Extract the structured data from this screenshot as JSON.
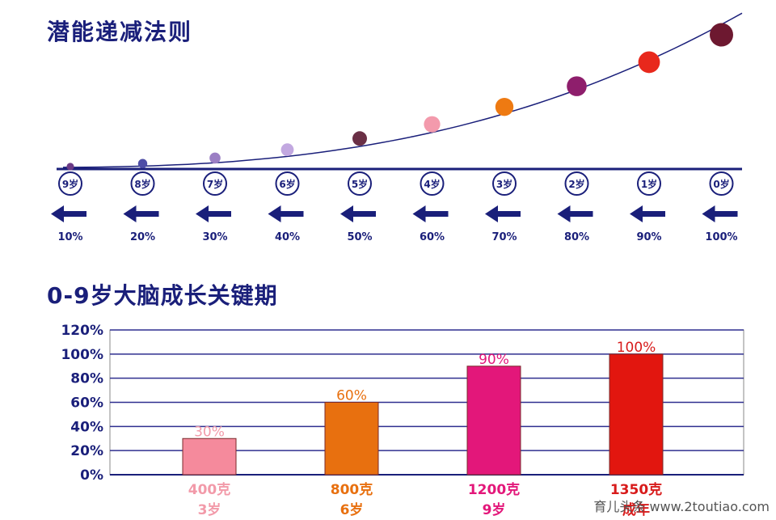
{
  "potential": {
    "title": "潜能递减法则",
    "chart_data": {
      "type": "scatter",
      "ages": [
        "9岁",
        "8岁",
        "7岁",
        "6岁",
        "5岁",
        "4岁",
        "3岁",
        "2岁",
        "1岁",
        "0岁"
      ],
      "percents": [
        "10%",
        "20%",
        "30%",
        "40%",
        "50%",
        "60%",
        "70%",
        "80%",
        "90%",
        "100%"
      ],
      "values": [
        10,
        20,
        30,
        40,
        50,
        60,
        70,
        80,
        90,
        100
      ],
      "dot_colors": [
        "#6b3a86",
        "#4d4da6",
        "#9b7fc4",
        "#c2a8e0",
        "#6a2f45",
        "#f39aac",
        "#ee7a12",
        "#8e1e6c",
        "#e8281c",
        "#6d1830"
      ],
      "axis_color": "#1a1f7a"
    }
  },
  "brain": {
    "title": "0-9岁大脑成长关键期",
    "chart_data": {
      "type": "bar",
      "ylim": [
        0,
        120
      ],
      "yticks": [
        "0%",
        "20%",
        "40%",
        "60%",
        "80%",
        "100%",
        "120%"
      ],
      "values": [
        30,
        60,
        90,
        100
      ],
      "value_labels": [
        "30%",
        "60%",
        "90%",
        "100%"
      ],
      "weights": [
        "400克",
        "800克",
        "1200克",
        "1350克"
      ],
      "ages": [
        "3岁",
        "6岁",
        "9岁",
        "成年"
      ],
      "bar_colors": [
        "#f58a9c",
        "#e8700f",
        "#e3177a",
        "#e2160f"
      ],
      "label_colors": [
        "#f29aa9",
        "#e8700f",
        "#e3177a",
        "#d81b1b"
      ],
      "grid": true,
      "grid_color": "#2f2f8f"
    }
  },
  "watermark": "育儿头条 www.2toutiao.com"
}
